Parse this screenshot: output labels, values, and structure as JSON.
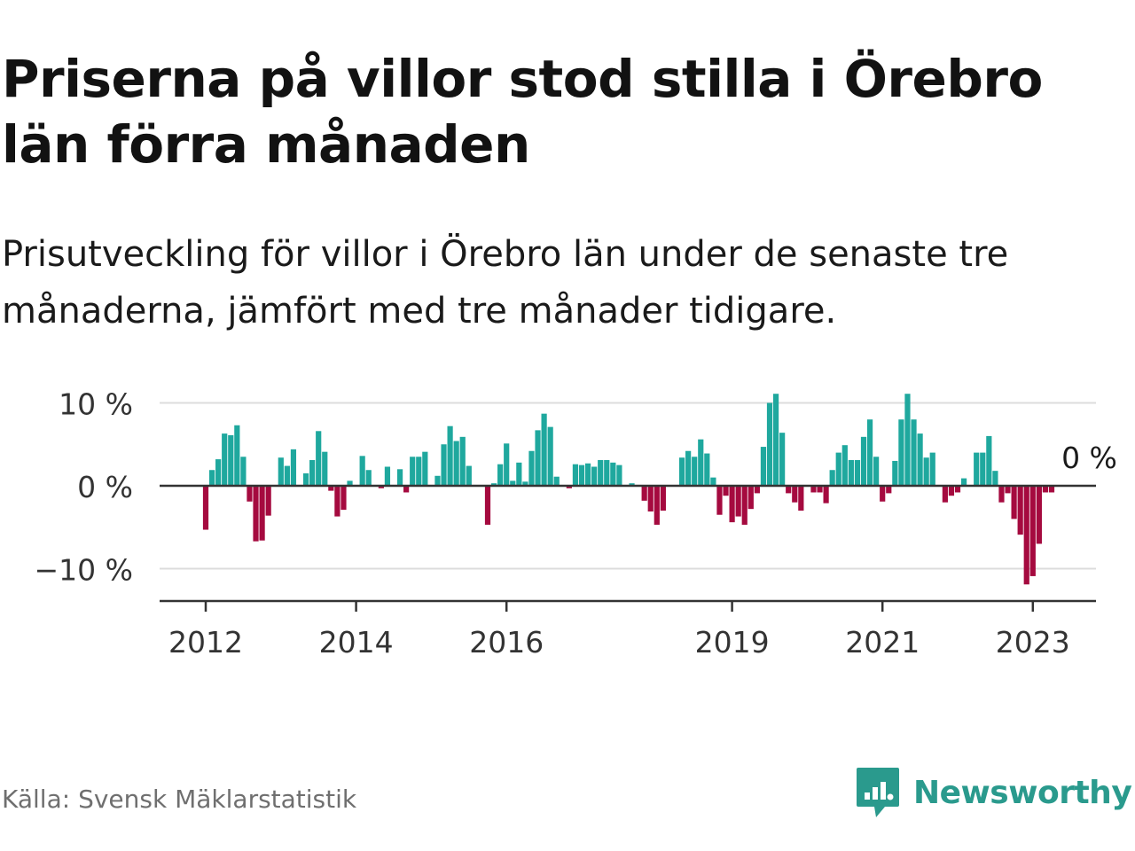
{
  "title": "Priserna på villor stod stilla i Örebro län förra månaden",
  "subtitle": "Prisutveckling för villor i Örebro län under de senaste tre månaderna, jämfört med tre månader tidigare.",
  "source": "Källa: Svensk Mäklarstatistik",
  "brand": {
    "name": "Newsworthy",
    "icon": "newsworthy-logo-icon",
    "color": "#2a9a8d"
  },
  "colors": {
    "positive": "#1fa89e",
    "negative": "#a50a3f",
    "grid": "#dcdcdc",
    "axis": "#333333"
  },
  "chart_data": {
    "type": "bar",
    "title": "",
    "xlabel": "",
    "ylabel": "",
    "ylim": [
      -14,
      12
    ],
    "y_ticks": [
      {
        "value": 10,
        "label": "10 %"
      },
      {
        "value": 0,
        "label": "0 %"
      },
      {
        "value": -10,
        "label": "−10 %"
      }
    ],
    "x_ticks": [
      {
        "value": 2012.0,
        "label": "2012"
      },
      {
        "value": 2014.0,
        "label": "2014"
      },
      {
        "value": 2016.0,
        "label": "2016"
      },
      {
        "value": 2019.0,
        "label": "2019"
      },
      {
        "value": 2021.0,
        "label": "2021"
      },
      {
        "value": 2023.0,
        "label": "2023"
      }
    ],
    "x_start": 2012.0,
    "x_step_months": 1,
    "grid": true,
    "annotation": {
      "label": "0 %",
      "value": 0
    },
    "values": [
      -5.3,
      1.9,
      3.2,
      6.3,
      6.1,
      7.3,
      3.5,
      -1.9,
      -6.7,
      -6.6,
      -3.6,
      0,
      3.4,
      2.4,
      4.4,
      0,
      1.5,
      3.1,
      6.6,
      4.1,
      -0.6,
      -3.7,
      -2.9,
      0.6,
      0,
      3.6,
      1.9,
      0,
      -0.3,
      2.3,
      0,
      2.0,
      -0.8,
      3.5,
      3.5,
      4.1,
      0,
      1.2,
      5.0,
      7.2,
      5.4,
      5.9,
      2.4,
      0,
      0,
      -4.7,
      0.3,
      2.6,
      5.1,
      0.6,
      2.8,
      0.5,
      4.2,
      6.7,
      8.7,
      7.1,
      1.1,
      0,
      -0.3,
      2.6,
      2.5,
      2.7,
      2.3,
      3.1,
      3.1,
      2.8,
      2.5,
      0,
      0.3,
      0,
      -1.8,
      -3.1,
      -4.7,
      -3.0,
      0,
      0,
      3.4,
      4.2,
      3.5,
      5.6,
      3.9,
      1.0,
      -3.5,
      -1.2,
      -4.4,
      -3.7,
      -4.7,
      -2.8,
      -0.9,
      4.7,
      10.0,
      11.1,
      6.4,
      -0.9,
      -2.0,
      -3.0,
      0,
      -0.8,
      -0.8,
      -2.1,
      1.9,
      4.0,
      4.9,
      3.1,
      3.1,
      5.9,
      8.0,
      3.5,
      -1.9,
      -0.9,
      3.0,
      8.0,
      11.1,
      8.0,
      6.3,
      3.4,
      4.0,
      0,
      -2.0,
      -1.2,
      -0.8,
      0.9,
      0,
      4.0,
      4.0,
      6.0,
      1.8,
      -2.0,
      -0.9,
      -4.0,
      -5.9,
      -11.9,
      -10.9,
      -7.0,
      -0.8,
      -0.8,
      0
    ]
  }
}
